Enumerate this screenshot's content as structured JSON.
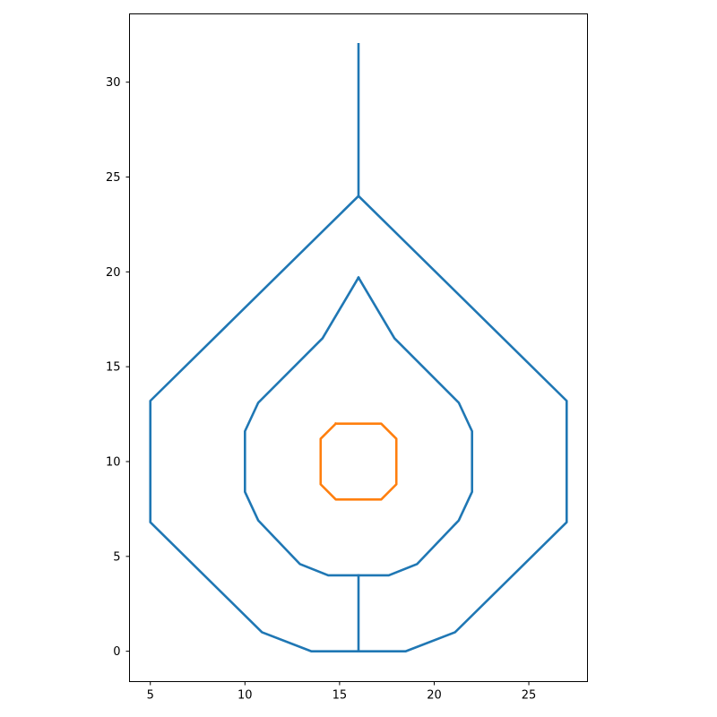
{
  "chart_data": {
    "type": "line",
    "title": "",
    "xlabel": "",
    "ylabel": "",
    "xlim": [
      3.9,
      28.1
    ],
    "ylim": [
      -1.6,
      33.6
    ],
    "xticks": [
      5,
      10,
      15,
      20,
      25
    ],
    "yticks": [
      0,
      5,
      10,
      15,
      20,
      25,
      30
    ],
    "grid": false,
    "legend": "none",
    "series": [
      {
        "color": "#1f77b4",
        "x": [
          16,
          16
        ],
        "y": [
          24,
          32
        ]
      },
      {
        "color": "#1f77b4",
        "x": [
          16,
          27,
          27,
          21.1,
          18.5,
          13.5,
          10.9,
          5,
          5,
          16
        ],
        "y": [
          24,
          13.2,
          6.8,
          1,
          0,
          0,
          1,
          6.8,
          13.2,
          24
        ]
      },
      {
        "color": "#1f77b4",
        "x": [
          16,
          17.9,
          21.3,
          22,
          22,
          21.3,
          19.1,
          17.6,
          14.4,
          12.9,
          10.7,
          10,
          10,
          10.7,
          14.1,
          16
        ],
        "y": [
          19.7,
          16.5,
          13.1,
          11.6,
          8.4,
          6.9,
          4.6,
          4,
          4,
          4.6,
          6.9,
          8.4,
          11.6,
          13.1,
          16.5,
          19.7
        ]
      },
      {
        "color": "#1f77b4",
        "x": [
          16,
          16
        ],
        "y": [
          0,
          4
        ]
      },
      {
        "color": "#ff7f0e",
        "x": [
          14.8,
          17.2,
          18,
          18,
          17.2,
          14.8,
          14,
          14,
          14.8
        ],
        "y": [
          12,
          12,
          11.2,
          8.8,
          8,
          8,
          8.8,
          11.2,
          12
        ]
      }
    ]
  }
}
